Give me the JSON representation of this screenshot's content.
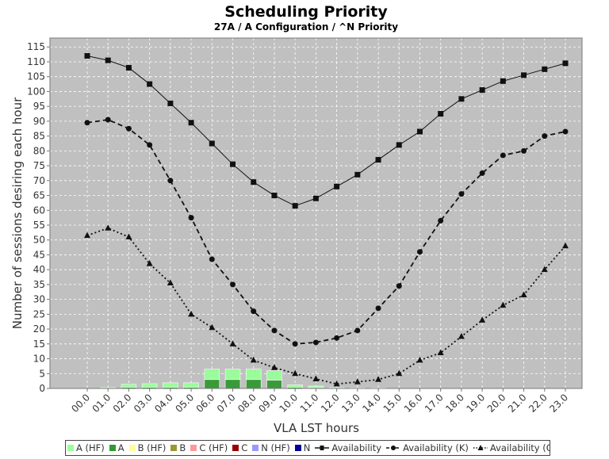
{
  "chart_data": {
    "type": "line",
    "title": "Scheduling Priority",
    "subtitle": "27A / A Configuration / ^N Priority",
    "xlabel": "VLA LST hours",
    "ylabel": "Number of sessions desiring each hour",
    "categories": [
      "00.0",
      "01.0",
      "02.0",
      "03.0",
      "04.0",
      "05.0",
      "06.0",
      "07.0",
      "08.0",
      "09.0",
      "10.0",
      "11.0",
      "12.0",
      "13.0",
      "14.0",
      "15.0",
      "16.0",
      "17.0",
      "18.0",
      "19.0",
      "20.0",
      "21.0",
      "22.0",
      "23.0"
    ],
    "ylim": [
      0,
      118
    ],
    "yticks": [
      0,
      5,
      10,
      15,
      20,
      25,
      30,
      35,
      40,
      45,
      50,
      55,
      60,
      65,
      70,
      75,
      80,
      85,
      90,
      95,
      100,
      105,
      110,
      115
    ],
    "grid": true,
    "legend_position": "bottom",
    "bars": [
      {
        "name": "A (HF)",
        "color": "#99ff99",
        "values": [
          0,
          0.3,
          1,
          1.2,
          1.5,
          1.5,
          3.5,
          3.5,
          3.5,
          3.2,
          0.8,
          0.5,
          0.3,
          0.2,
          0.2,
          0,
          0,
          0,
          0,
          0,
          0,
          0,
          0,
          0
        ]
      },
      {
        "name": "A",
        "color": "#339933",
        "values": [
          0,
          0,
          0.4,
          0.4,
          0.4,
          0.4,
          3,
          3,
          3,
          2.8,
          0.4,
          0.3,
          0,
          0,
          0,
          0,
          0,
          0,
          0,
          0,
          0,
          0,
          0,
          0
        ]
      },
      {
        "name": "B (HF)",
        "color": "#ffff99",
        "values": [
          0,
          0,
          0,
          0,
          0,
          0,
          0,
          0,
          0,
          0,
          0,
          0,
          0,
          0,
          0,
          0,
          0,
          0,
          0,
          0,
          0,
          0,
          0,
          0
        ]
      },
      {
        "name": "B",
        "color": "#999933",
        "values": [
          0,
          0,
          0,
          0,
          0,
          0,
          0,
          0,
          0,
          0,
          0,
          0,
          0,
          0,
          0,
          0,
          0,
          0,
          0,
          0,
          0,
          0,
          0,
          0
        ]
      },
      {
        "name": "C (HF)",
        "color": "#ff9999",
        "values": [
          0,
          0,
          0,
          0,
          0,
          0,
          0,
          0,
          0,
          0,
          0,
          0,
          0,
          0,
          0,
          0,
          0,
          0,
          0,
          0,
          0,
          0,
          0,
          0
        ]
      },
      {
        "name": "C",
        "color": "#990000",
        "values": [
          0,
          0,
          0,
          0,
          0,
          0,
          0,
          0,
          0,
          0,
          0,
          0,
          0,
          0,
          0,
          0,
          0,
          0,
          0,
          0,
          0,
          0,
          0,
          0
        ]
      },
      {
        "name": "N (HF)",
        "color": "#9999ff",
        "values": [
          0,
          0,
          0,
          0,
          0,
          0,
          0,
          0,
          0,
          0,
          0,
          0,
          0,
          0,
          0,
          0,
          0,
          0,
          0,
          0,
          0,
          0,
          0,
          0
        ]
      },
      {
        "name": "N",
        "color": "#000099",
        "values": [
          0,
          0,
          0,
          0,
          0,
          0,
          0,
          0,
          0,
          0,
          0,
          0,
          0,
          0,
          0,
          0,
          0,
          0,
          0,
          0,
          0,
          0,
          0,
          0
        ]
      }
    ],
    "series": [
      {
        "name": "Availability",
        "marker": "square",
        "dash": "none",
        "values": [
          112,
          110.5,
          108,
          102.5,
          96,
          89.5,
          82.5,
          75.5,
          69.5,
          65,
          61.5,
          64,
          68,
          72,
          77,
          82,
          86.5,
          92.5,
          97.5,
          100.5,
          103.5,
          105.5,
          107.5,
          109.5
        ]
      },
      {
        "name": "Availability (K)",
        "marker": "circle",
        "dash": "long",
        "values": [
          89.5,
          90.5,
          87.5,
          82,
          70,
          57.5,
          43.5,
          35,
          26,
          19.5,
          15,
          15.5,
          17,
          19.5,
          27,
          34.5,
          46,
          56.5,
          65.5,
          72.5,
          78.5,
          80,
          85,
          86.5
        ]
      },
      {
        "name": "Availability (Q)",
        "marker": "triangle",
        "dash": "dot",
        "values": [
          51.5,
          54,
          51,
          42,
          35.5,
          25,
          20.5,
          15,
          9.5,
          7,
          5,
          3.2,
          1.5,
          2.2,
          3,
          5,
          9.5,
          12,
          17.5,
          23,
          28,
          31.5,
          40,
          48
        ]
      }
    ]
  }
}
